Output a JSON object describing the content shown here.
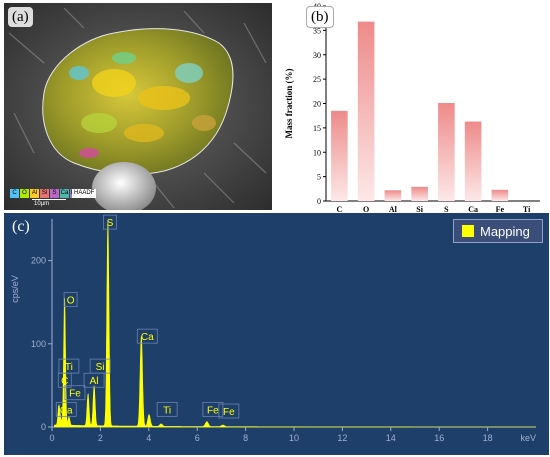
{
  "panel_a": {
    "tag": "(a)",
    "legend_elements": [
      "C",
      "O",
      "Al",
      "Si",
      "S",
      "Ca",
      "Fe",
      "Ti"
    ],
    "legend_colors": [
      "#4fc3f7",
      "#aeea00",
      "#ffca28",
      "#e57373",
      "#ba68c8",
      "#4db6ac",
      "#9575cd",
      "#7986cb"
    ],
    "haadf_label": "HAADF",
    "scale_label": "10µm"
  },
  "panel_b": {
    "tag": "(b)",
    "bar_color": "#ee8a8a"
  },
  "panel_c": {
    "tag": "(c)",
    "legend_label": "Mapping",
    "background_color": "#1f3f6b",
    "spectrum_color": "#ffff00",
    "peak_labels": [
      "S",
      "O",
      "Ca",
      "Ti",
      "Si",
      "C",
      "Al",
      "Fe",
      "Ca",
      "Ti",
      "Fe",
      "Fe"
    ]
  },
  "chart_data": [
    {
      "type": "bar",
      "categories": [
        "C",
        "O",
        "Al",
        "Si",
        "S",
        "Ca",
        "Fe",
        "Ti"
      ],
      "values": [
        18.5,
        36.8,
        2.2,
        2.9,
        20.1,
        16.3,
        2.3,
        0
      ],
      "ylabel": "Mass fraction (%)",
      "xlabel": "",
      "ylim": [
        0,
        40
      ],
      "yticks": [
        0,
        5,
        10,
        15,
        20,
        25,
        30,
        35,
        40
      ],
      "grid": false
    },
    {
      "type": "line",
      "xlabel": "keV",
      "ylabel": "cps/eV",
      "xlim": [
        0,
        20
      ],
      "ylim": [
        0,
        250
      ],
      "xticks": [
        0,
        2,
        4,
        6,
        8,
        10,
        12,
        14,
        16,
        18
      ],
      "yticks": [
        0,
        100,
        200
      ],
      "series": [
        {
          "name": "Mapping",
          "peaks": [
            {
              "element": "C",
              "x": 0.28,
              "y": 22
            },
            {
              "element": "O",
              "x": 0.52,
              "y": 152
            },
            {
              "element": "Ca",
              "x": 0.34,
              "y": 8
            },
            {
              "element": "Ti",
              "x": 0.45,
              "y": 6
            },
            {
              "element": "Fe",
              "x": 0.7,
              "y": 10
            },
            {
              "element": "Al",
              "x": 1.49,
              "y": 38
            },
            {
              "element": "Si",
              "x": 1.74,
              "y": 48
            },
            {
              "element": "S",
              "x": 2.31,
              "y": 245
            },
            {
              "element": "Ca",
              "x": 3.69,
              "y": 108
            },
            {
              "element": "Ca Kb",
              "x": 4.01,
              "y": 14
            },
            {
              "element": "Ti",
              "x": 4.51,
              "y": 3
            },
            {
              "element": "Fe",
              "x": 6.4,
              "y": 6
            },
            {
              "element": "Fe Kb",
              "x": 7.06,
              "y": 2
            }
          ]
        }
      ]
    }
  ]
}
